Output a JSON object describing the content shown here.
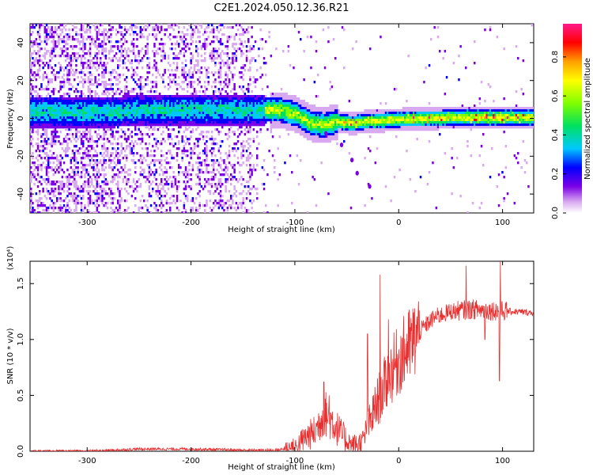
{
  "chart_data": [
    {
      "type": "heatmap",
      "title": "C2E1.2024.050.12.36.R21",
      "xlabel": "Height of straight line (km)",
      "ylabel": "Frequency (Hz)",
      "xlim": [
        -355,
        130
      ],
      "ylim": [
        -50,
        50
      ],
      "xticks": [
        -300,
        -200,
        -100,
        0,
        100
      ],
      "xtick_labels": [
        "-300",
        "-200",
        "-100",
        "0",
        "100"
      ],
      "yticks": [
        -40,
        -20,
        0,
        20,
        40
      ],
      "ytick_labels": [
        "-40",
        "-20",
        "0",
        "20",
        "40"
      ],
      "colorbar": {
        "label": "Normalized spectral amplitude",
        "range": [
          0,
          0.97
        ],
        "ticks": [
          0,
          0.2,
          0.4,
          0.6,
          0.8
        ],
        "tick_labels": [
          "0.0",
          "0.2",
          "0.4",
          "0.6",
          "0.8"
        ],
        "colormap": [
          "#ffffff",
          "#d8a8f0",
          "#7b00e6",
          "#0000ff",
          "#00c8ff",
          "#00e060",
          "#80ff00",
          "#ffff00",
          "#ffa000",
          "#ff0000",
          "#ff1a8a"
        ]
      },
      "ridge": {
        "description_points": [
          {
            "x": -275,
            "f": 4
          },
          {
            "x": -250,
            "f": 5
          },
          {
            "x": -200,
            "f": 5
          },
          {
            "x": -160,
            "f": 5
          },
          {
            "x": -130,
            "f": 5
          },
          {
            "x": -115,
            "f": 5
          },
          {
            "x": -100,
            "f": 3
          },
          {
            "x": -85,
            "f": -2
          },
          {
            "x": -72,
            "f": -3
          },
          {
            "x": -60,
            "f": -1
          },
          {
            "x": -45,
            "f": -2
          },
          {
            "x": -30,
            "f": -1
          },
          {
            "x": 0,
            "f": 0
          },
          {
            "x": 50,
            "f": 1
          },
          {
            "x": 90,
            "f": 1
          },
          {
            "x": 130,
            "f": 1
          }
        ],
        "branch": [
          {
            "x": -70,
            "f": -8
          },
          {
            "x": -55,
            "f": -14
          },
          {
            "x": -45,
            "f": -22
          },
          {
            "x": -40,
            "f": -29
          },
          {
            "x": -28,
            "f": -36
          }
        ]
      }
    },
    {
      "type": "line",
      "title": "",
      "xlabel": "Height of straight line (km)",
      "ylabel": "SNR (10 * v/v)",
      "y_multiplier": "(x10⁴)",
      "xlim": [
        -355,
        130
      ],
      "ylim": [
        0,
        1.7
      ],
      "xticks": [
        -300,
        -200,
        -100,
        0,
        100
      ],
      "xtick_labels": [
        "-300",
        "-200",
        "-100",
        "0",
        "100"
      ],
      "yticks": [
        0,
        0.5,
        1.0,
        1.5
      ],
      "ytick_labels": [
        "0.0",
        "0.5",
        "1.0",
        "1.5"
      ],
      "series": [
        {
          "color": "#e83030",
          "envelope": [
            {
              "x": -355,
              "y": 0.0
            },
            {
              "x": -300,
              "y": 0.0
            },
            {
              "x": -250,
              "y": 0.02
            },
            {
              "x": -200,
              "y": 0.02
            },
            {
              "x": -150,
              "y": 0.01
            },
            {
              "x": -120,
              "y": 0.01
            },
            {
              "x": -100,
              "y": 0.03
            },
            {
              "x": -90,
              "y": 0.12
            },
            {
              "x": -80,
              "y": 0.18
            },
            {
              "x": -72,
              "y": 0.35
            },
            {
              "x": -65,
              "y": 0.28
            },
            {
              "x": -55,
              "y": 0.15
            },
            {
              "x": -45,
              "y": 0.05
            },
            {
              "x": -35,
              "y": 0.08
            },
            {
              "x": -28,
              "y": 0.25
            },
            {
              "x": -20,
              "y": 0.45
            },
            {
              "x": -12,
              "y": 0.62
            },
            {
              "x": -5,
              "y": 0.75
            },
            {
              "x": 5,
              "y": 0.88
            },
            {
              "x": 15,
              "y": 1.0
            },
            {
              "x": 25,
              "y": 1.12
            },
            {
              "x": 35,
              "y": 1.2
            },
            {
              "x": 50,
              "y": 1.25
            },
            {
              "x": 70,
              "y": 1.27
            },
            {
              "x": 90,
              "y": 1.26
            },
            {
              "x": 110,
              "y": 1.25
            },
            {
              "x": 130,
              "y": 1.24
            }
          ],
          "spikes": [
            {
              "x": -72,
              "y": 0.62
            },
            {
              "x": -67,
              "y": 0.5
            },
            {
              "x": -30,
              "y": 1.05
            },
            {
              "x": -18,
              "y": 1.58
            },
            {
              "x": -10,
              "y": 1.18
            },
            {
              "x": 65,
              "y": 1.66
            },
            {
              "x": 98,
              "y": 1.7
            },
            {
              "x": 97,
              "y": 0.63
            },
            {
              "x": 83,
              "y": 1.0
            }
          ]
        }
      ]
    }
  ]
}
